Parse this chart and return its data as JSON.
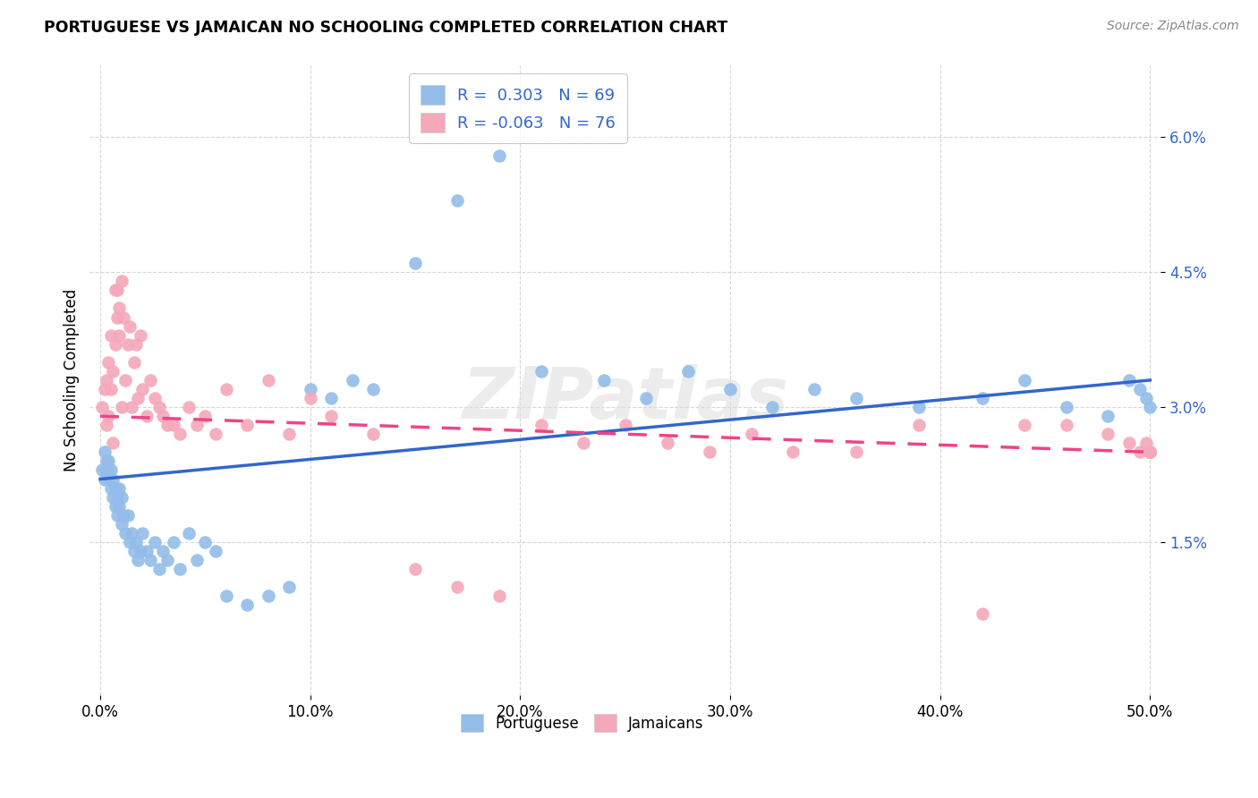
{
  "title": "PORTUGUESE VS JAMAICAN NO SCHOOLING COMPLETED CORRELATION CHART",
  "source": "Source: ZipAtlas.com",
  "ylabel": "No Schooling Completed",
  "ytick_vals": [
    0.015,
    0.03,
    0.045,
    0.06
  ],
  "xtick_vals": [
    0.0,
    0.1,
    0.2,
    0.3,
    0.4,
    0.5
  ],
  "xlim": [
    -0.005,
    0.505
  ],
  "ylim": [
    -0.002,
    0.068
  ],
  "r_portuguese": 0.303,
  "n_portuguese": 69,
  "r_jamaican": -0.063,
  "n_jamaican": 76,
  "blue_color": "#92BDE8",
  "pink_color": "#F4A8BA",
  "blue_line_color": "#3366CC",
  "pink_line_color": "#EE4488",
  "blue_line_x0": 0.0,
  "blue_line_y0": 0.022,
  "blue_line_x1": 0.5,
  "blue_line_y1": 0.033,
  "pink_line_x0": 0.0,
  "pink_line_y0": 0.029,
  "pink_line_x1": 0.5,
  "pink_line_y1": 0.025,
  "port_x": [
    0.001,
    0.002,
    0.002,
    0.003,
    0.003,
    0.004,
    0.004,
    0.005,
    0.005,
    0.006,
    0.006,
    0.007,
    0.007,
    0.008,
    0.008,
    0.009,
    0.009,
    0.01,
    0.01,
    0.011,
    0.012,
    0.013,
    0.014,
    0.015,
    0.016,
    0.017,
    0.018,
    0.019,
    0.02,
    0.022,
    0.024,
    0.026,
    0.028,
    0.03,
    0.032,
    0.035,
    0.038,
    0.042,
    0.046,
    0.05,
    0.055,
    0.06,
    0.07,
    0.08,
    0.09,
    0.1,
    0.11,
    0.12,
    0.13,
    0.15,
    0.17,
    0.19,
    0.21,
    0.24,
    0.26,
    0.28,
    0.3,
    0.32,
    0.34,
    0.36,
    0.39,
    0.42,
    0.44,
    0.46,
    0.48,
    0.49,
    0.495,
    0.498,
    0.5
  ],
  "port_y": [
    0.023,
    0.025,
    0.022,
    0.023,
    0.024,
    0.022,
    0.024,
    0.021,
    0.023,
    0.02,
    0.022,
    0.019,
    0.021,
    0.018,
    0.02,
    0.019,
    0.021,
    0.017,
    0.02,
    0.018,
    0.016,
    0.018,
    0.015,
    0.016,
    0.014,
    0.015,
    0.013,
    0.014,
    0.016,
    0.014,
    0.013,
    0.015,
    0.012,
    0.014,
    0.013,
    0.015,
    0.012,
    0.016,
    0.013,
    0.015,
    0.014,
    0.009,
    0.008,
    0.009,
    0.01,
    0.032,
    0.031,
    0.033,
    0.032,
    0.046,
    0.053,
    0.058,
    0.034,
    0.033,
    0.031,
    0.034,
    0.032,
    0.03,
    0.032,
    0.031,
    0.03,
    0.031,
    0.033,
    0.03,
    0.029,
    0.033,
    0.032,
    0.031,
    0.03
  ],
  "jam_x": [
    0.001,
    0.002,
    0.003,
    0.003,
    0.004,
    0.004,
    0.005,
    0.005,
    0.006,
    0.006,
    0.007,
    0.007,
    0.008,
    0.008,
    0.009,
    0.009,
    0.01,
    0.01,
    0.011,
    0.012,
    0.013,
    0.014,
    0.015,
    0.016,
    0.017,
    0.018,
    0.019,
    0.02,
    0.022,
    0.024,
    0.026,
    0.028,
    0.03,
    0.032,
    0.035,
    0.038,
    0.042,
    0.046,
    0.05,
    0.055,
    0.06,
    0.07,
    0.08,
    0.09,
    0.1,
    0.11,
    0.13,
    0.15,
    0.17,
    0.19,
    0.21,
    0.23,
    0.25,
    0.27,
    0.29,
    0.31,
    0.33,
    0.36,
    0.39,
    0.42,
    0.44,
    0.46,
    0.48,
    0.49,
    0.495,
    0.498,
    0.5,
    0.5,
    0.5,
    0.5,
    0.5,
    0.5,
    0.5,
    0.5,
    0.5,
    0.5
  ],
  "jam_y": [
    0.03,
    0.032,
    0.028,
    0.033,
    0.029,
    0.035,
    0.032,
    0.038,
    0.026,
    0.034,
    0.037,
    0.043,
    0.04,
    0.043,
    0.041,
    0.038,
    0.044,
    0.03,
    0.04,
    0.033,
    0.037,
    0.039,
    0.03,
    0.035,
    0.037,
    0.031,
    0.038,
    0.032,
    0.029,
    0.033,
    0.031,
    0.03,
    0.029,
    0.028,
    0.028,
    0.027,
    0.03,
    0.028,
    0.029,
    0.027,
    0.032,
    0.028,
    0.033,
    0.027,
    0.031,
    0.029,
    0.027,
    0.012,
    0.01,
    0.009,
    0.028,
    0.026,
    0.028,
    0.026,
    0.025,
    0.027,
    0.025,
    0.025,
    0.028,
    0.007,
    0.028,
    0.028,
    0.027,
    0.026,
    0.025,
    0.026,
    0.025,
    0.025,
    0.025,
    0.025,
    0.025,
    0.025,
    0.025,
    0.025,
    0.025,
    0.025
  ]
}
